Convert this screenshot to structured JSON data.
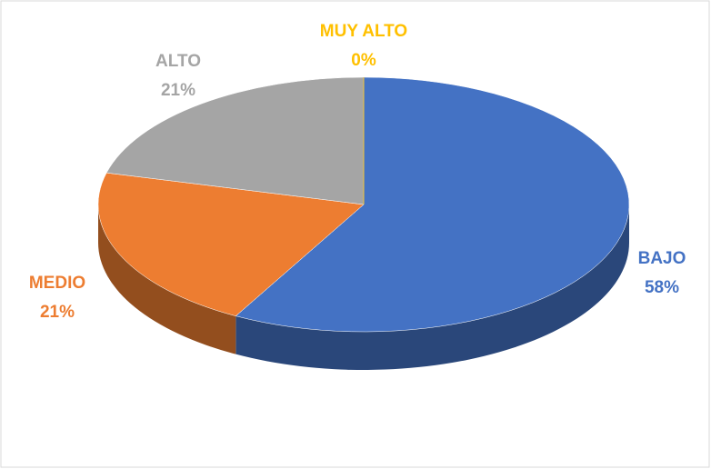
{
  "chart_data": {
    "type": "pie",
    "categories": [
      "BAJO",
      "MEDIO",
      "ALTO",
      "MUY ALTO"
    ],
    "values": [
      58,
      21,
      21,
      0
    ],
    "value_labels": [
      "58%",
      "21%",
      "21%",
      "0%"
    ],
    "colors": [
      "#4472c4",
      "#ed7d31",
      "#a5a5a5",
      "#ffc000"
    ]
  }
}
